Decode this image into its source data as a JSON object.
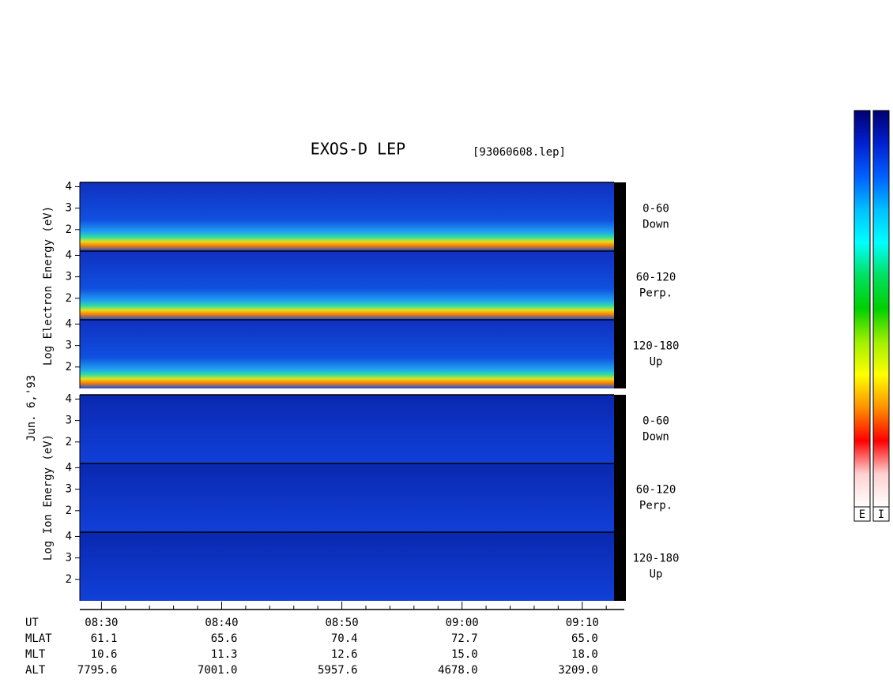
{
  "chart_data": {
    "type": "spectrogram",
    "title": "EXOS-D LEP",
    "file_label": "[93060608.lep]",
    "date_label": "Jun. 6,'93",
    "ylim": [
      1,
      4.2
    ],
    "yticks": [
      2,
      3,
      4
    ],
    "xlim": [
      28.2,
      73.5
    ],
    "xticks": [
      {
        "value": 30,
        "label": "08:30"
      },
      {
        "value": 40,
        "label": "08:40"
      },
      {
        "value": 50,
        "label": "08:50"
      },
      {
        "value": 60,
        "label": "09:00"
      },
      {
        "value": 70,
        "label": "09:10"
      }
    ],
    "xminorticks": [
      32,
      34,
      36,
      38,
      42,
      44,
      46,
      48,
      52,
      54,
      56,
      58,
      62,
      64,
      66,
      68,
      72
    ],
    "electron": {
      "y_title": "Log Electron Energy (eV)",
      "panels": [
        {
          "pitch": "0-60",
          "direction": "Down"
        },
        {
          "pitch": "60-120",
          "direction": "Perp."
        },
        {
          "pitch": "120-180",
          "direction": "Up"
        }
      ]
    },
    "ion": {
      "y_title": "Log Ion Energy (eV)",
      "panels": [
        {
          "pitch": "0-60",
          "direction": "Down"
        },
        {
          "pitch": "60-120",
          "direction": "Perp."
        },
        {
          "pitch": "120-180",
          "direction": "Up"
        }
      ]
    },
    "time_label": "UT",
    "orbit": [
      {
        "name": "MLAT",
        "values": [
          "61.1",
          "65.6",
          "70.4",
          "72.7",
          "65.0"
        ]
      },
      {
        "name": "MLT",
        "values": [
          "10.6",
          "11.3",
          "12.6",
          "15.0",
          "18.0"
        ]
      },
      {
        "name": "ALT",
        "values": [
          "7795.6",
          "7001.0",
          "5957.6",
          "4678.0",
          "3209.0"
        ]
      }
    ],
    "colorbars": [
      {
        "label": "E"
      },
      {
        "label": "I"
      }
    ],
    "colormap": [
      "#000070",
      "#0020d0",
      "#0060ff",
      "#00c0ff",
      "#00ffff",
      "#00e060",
      "#00d000",
      "#a0f000",
      "#ffff00",
      "#ff9000",
      "#ff0000",
      "#ffd0d0",
      "#ffffff"
    ]
  }
}
